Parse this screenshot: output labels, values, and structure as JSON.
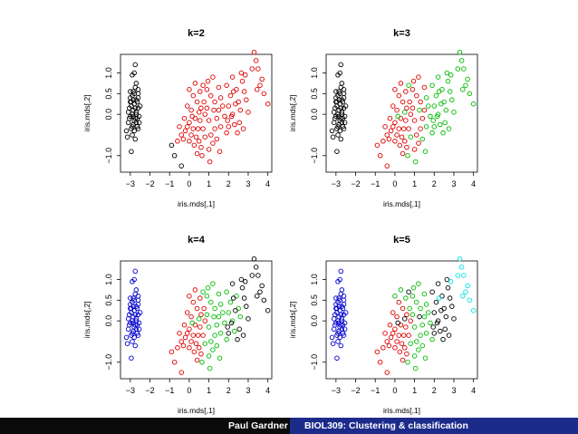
{
  "chart_data": [
    {
      "type": "scatter",
      "title": "k=2",
      "xlabel": "iris.mds[,1]",
      "ylabel": "iris.mds[,2]",
      "xlim": [
        -3.5,
        4.2
      ],
      "ylim": [
        -1.4,
        1.45
      ],
      "xticks": [
        -3,
        -2,
        -1,
        0,
        1,
        2,
        3,
        4
      ],
      "yticks": [
        -1.0,
        0.0,
        0.5,
        1.0
      ],
      "clusters": [
        {
          "color": "#000000",
          "rule": "x < -1.5 or the two points at x≈-0.9"
        },
        {
          "color": "#dd0000",
          "rule": "remaining points"
        }
      ]
    },
    {
      "type": "scatter",
      "title": "k=3",
      "xlabel": "iris.mds[,1]",
      "ylabel": "iris.mds[,2]",
      "xlim": [
        -3.5,
        4.2
      ],
      "ylim": [
        -1.4,
        1.45
      ],
      "xticks": [
        -3,
        -2,
        -1,
        0,
        1,
        2,
        3,
        4
      ],
      "yticks": [
        -1.0,
        0.0,
        0.5,
        1.0
      ],
      "clusters": [
        {
          "color": "#000000"
        },
        {
          "color": "#dd0000"
        },
        {
          "color": "#00bb00"
        }
      ]
    },
    {
      "type": "scatter",
      "title": "k=4",
      "xlabel": "iris.mds[,1]",
      "ylabel": "iris.mds[,2]",
      "xlim": [
        -3.5,
        4.2
      ],
      "ylim": [
        -1.4,
        1.45
      ],
      "xticks": [
        -3,
        -2,
        -1,
        0,
        1,
        2,
        3,
        4
      ],
      "yticks": [
        -1.0,
        0.0,
        0.5,
        1.0
      ],
      "clusters": [
        {
          "color": "#0000cc"
        },
        {
          "color": "#dd0000"
        },
        {
          "color": "#00bb00"
        },
        {
          "color": "#000000"
        }
      ]
    },
    {
      "type": "scatter",
      "title": "k=5",
      "xlabel": "iris.mds[,1]",
      "ylabel": "iris.mds[,2]",
      "xlim": [
        -3.5,
        4.2
      ],
      "ylim": [
        -1.4,
        1.45
      ],
      "xticks": [
        -3,
        -2,
        -1,
        0,
        1,
        2,
        3,
        4
      ],
      "yticks": [
        -1.0,
        0.0,
        0.5,
        1.0
      ],
      "clusters": [
        {
          "color": "#0000cc"
        },
        {
          "color": "#dd0000"
        },
        {
          "color": "#00bb00"
        },
        {
          "color": "#000000"
        },
        {
          "color": "#00e5e5"
        }
      ]
    }
  ],
  "points": [
    [
      -3.0,
      0.55
    ],
    [
      -2.9,
      0.95
    ],
    [
      -2.8,
      1.0
    ],
    [
      -2.75,
      1.2
    ],
    [
      -2.95,
      0.3
    ],
    [
      -2.8,
      0.25
    ],
    [
      -2.7,
      0.35
    ],
    [
      -2.85,
      0.1
    ],
    [
      -2.9,
      0.0
    ],
    [
      -3.0,
      -0.05
    ],
    [
      -2.75,
      -0.1
    ],
    [
      -3.1,
      -0.2
    ],
    [
      -2.85,
      -0.25
    ],
    [
      -2.7,
      0.0
    ],
    [
      -2.6,
      0.15
    ],
    [
      -2.9,
      -0.5
    ],
    [
      -3.15,
      -0.55
    ],
    [
      -2.95,
      -0.9
    ],
    [
      -2.6,
      0.4
    ],
    [
      -2.5,
      0.2
    ],
    [
      -2.65,
      -0.3
    ],
    [
      -3.05,
      0.15
    ],
    [
      -2.8,
      0.5
    ],
    [
      -2.6,
      0.6
    ],
    [
      -3.2,
      -0.4
    ],
    [
      -2.75,
      -0.6
    ],
    [
      -2.55,
      -0.05
    ],
    [
      -3.0,
      0.4
    ],
    [
      -2.7,
      0.75
    ],
    [
      -2.85,
      -0.05
    ],
    [
      -2.6,
      -0.35
    ],
    [
      -2.95,
      0.2
    ],
    [
      -2.7,
      0.05
    ],
    [
      -2.8,
      -0.15
    ],
    [
      -3.1,
      0.05
    ],
    [
      -2.65,
      0.3
    ],
    [
      -2.9,
      -0.3
    ],
    [
      -2.75,
      0.65
    ],
    [
      -2.55,
      -0.2
    ],
    [
      -3.05,
      -0.1
    ],
    [
      -2.9,
      0.45
    ],
    [
      -2.8,
      -0.4
    ],
    [
      -2.6,
      0.5
    ],
    [
      -2.7,
      -0.2
    ],
    [
      -3.0,
      0.3
    ],
    [
      -2.85,
      0.55
    ],
    [
      -2.75,
      0.15
    ],
    [
      -2.95,
      -0.35
    ],
    [
      -2.65,
      -0.1
    ],
    [
      -2.85,
      0.35
    ],
    [
      -0.9,
      -0.75
    ],
    [
      -0.75,
      -1.0
    ],
    [
      -0.4,
      -1.25
    ],
    [
      -0.5,
      -0.3
    ],
    [
      -0.3,
      -0.6
    ],
    [
      -0.2,
      -0.4
    ],
    [
      -0.1,
      -0.3
    ],
    [
      0.0,
      -0.2
    ],
    [
      -0.25,
      -0.1
    ],
    [
      -0.4,
      -0.5
    ],
    [
      -0.6,
      -0.65
    ],
    [
      0.1,
      -0.5
    ],
    [
      0.2,
      -0.35
    ],
    [
      0.3,
      -0.1
    ],
    [
      0.1,
      0.1
    ],
    [
      -0.1,
      0.2
    ],
    [
      0.0,
      -0.65
    ],
    [
      0.25,
      -0.75
    ],
    [
      0.4,
      -0.95
    ],
    [
      0.5,
      -0.65
    ],
    [
      0.6,
      -0.8
    ],
    [
      0.35,
      -0.55
    ],
    [
      0.45,
      -0.35
    ],
    [
      0.55,
      -0.15
    ],
    [
      0.7,
      -0.35
    ],
    [
      0.8,
      0.0
    ],
    [
      0.6,
      0.15
    ],
    [
      0.4,
      0.3
    ],
    [
      0.2,
      0.45
    ],
    [
      0.0,
      0.6
    ],
    [
      0.3,
      0.75
    ],
    [
      0.55,
      0.55
    ],
    [
      0.75,
      0.3
    ],
    [
      0.9,
      0.15
    ],
    [
      1.0,
      -0.15
    ],
    [
      1.1,
      -0.5
    ],
    [
      1.2,
      -0.7
    ],
    [
      1.0,
      -0.85
    ],
    [
      1.3,
      -0.35
    ],
    [
      1.4,
      -0.1
    ],
    [
      1.5,
      0.1
    ],
    [
      1.3,
      0.3
    ],
    [
      1.1,
      0.45
    ],
    [
      0.9,
      0.6
    ],
    [
      0.95,
      0.8
    ],
    [
      1.2,
      0.9
    ],
    [
      1.5,
      0.65
    ],
    [
      1.6,
      0.4
    ],
    [
      1.7,
      0.2
    ],
    [
      1.8,
      -0.05
    ],
    [
      1.6,
      -0.3
    ],
    [
      1.9,
      -0.45
    ],
    [
      1.4,
      -0.6
    ],
    [
      0.8,
      -0.55
    ],
    [
      0.65,
      -1.0
    ],
    [
      1.05,
      -1.15
    ],
    [
      1.55,
      -0.9
    ],
    [
      0.5,
      0.05
    ],
    [
      0.15,
      -0.05
    ],
    [
      0.7,
      0.7
    ],
    [
      1.25,
      0.1
    ],
    [
      2.0,
      0.2
    ],
    [
      2.1,
      0.45
    ],
    [
      2.2,
      0.0
    ],
    [
      2.3,
      -0.25
    ],
    [
      1.9,
      0.7
    ],
    [
      2.4,
      0.6
    ],
    [
      2.5,
      0.3
    ],
    [
      2.6,
      0.1
    ],
    [
      2.0,
      -0.3
    ],
    [
      2.2,
      0.9
    ],
    [
      2.7,
      0.8
    ],
    [
      2.8,
      0.55
    ],
    [
      2.9,
      0.35
    ],
    [
      3.0,
      0.05
    ],
    [
      2.55,
      -0.2
    ],
    [
      2.35,
      0.25
    ],
    [
      1.95,
      -0.15
    ],
    [
      2.65,
      1.0
    ],
    [
      2.15,
      -0.05
    ],
    [
      2.45,
      -0.45
    ],
    [
      2.75,
      -0.35
    ],
    [
      2.25,
      0.55
    ],
    [
      2.85,
      0.95
    ],
    [
      3.3,
      1.5
    ],
    [
      3.4,
      1.3
    ],
    [
      3.5,
      1.1
    ],
    [
      3.6,
      0.7
    ],
    [
      3.8,
      0.5
    ],
    [
      3.7,
      0.85
    ],
    [
      4.0,
      0.25
    ],
    [
      3.45,
      0.6
    ],
    [
      3.2,
      1.1
    ]
  ],
  "cluster_members": {
    "k2": "0:0-52 black, 53+ red",
    "k3": "0:0-49 black, 50-96 red, 97+ green",
    "k4": "0:0-49 blue, 50-82 red, 83-118 green, 119+ black",
    "k5": "0:0-49 blue, 50-78 red, 79-106 green, 107-131 black, 132+ cyan"
  },
  "footer": {
    "author": "Paul Gardner",
    "course": "BIOL309: Clustering & classification"
  }
}
